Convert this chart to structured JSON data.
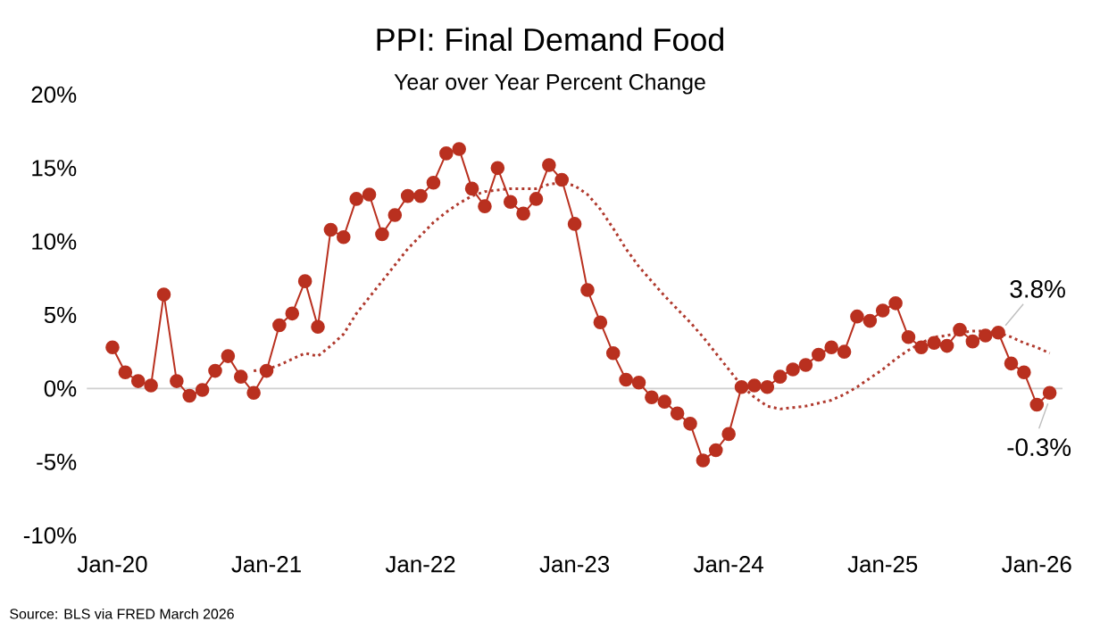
{
  "chart_data": {
    "type": "line",
    "title": "PPI: Final Demand Food",
    "subtitle": "Year over Year Percent Change",
    "x": [
      "2020-01",
      "2020-02",
      "2020-03",
      "2020-04",
      "2020-05",
      "2020-06",
      "2020-07",
      "2020-08",
      "2020-09",
      "2020-10",
      "2020-11",
      "2020-12",
      "2021-01",
      "2021-02",
      "2021-03",
      "2021-04",
      "2021-05",
      "2021-06",
      "2021-07",
      "2021-08",
      "2021-09",
      "2021-10",
      "2021-11",
      "2021-12",
      "2022-01",
      "2022-02",
      "2022-03",
      "2022-04",
      "2022-05",
      "2022-06",
      "2022-07",
      "2022-08",
      "2022-09",
      "2022-10",
      "2022-11",
      "2022-12",
      "2023-01",
      "2023-02",
      "2023-03",
      "2023-04",
      "2023-05",
      "2023-06",
      "2023-07",
      "2023-08",
      "2023-09",
      "2023-10",
      "2023-11",
      "2023-12",
      "2024-01",
      "2024-02",
      "2024-03",
      "2024-04",
      "2024-05",
      "2024-06",
      "2024-07",
      "2024-08",
      "2024-09",
      "2024-10",
      "2024-11",
      "2024-12",
      "2025-01",
      "2025-02",
      "2025-03",
      "2025-04",
      "2025-05",
      "2025-06",
      "2025-07",
      "2025-08",
      "2025-09",
      "2025-10",
      "2025-11",
      "2025-12",
      "2026-01",
      "2026-02"
    ],
    "series": [
      {
        "color": "#b9301f",
        "marker": "circle",
        "line_style": "solid",
        "values": [
          2.8,
          1.1,
          0.5,
          0.2,
          6.4,
          0.5,
          -0.5,
          -0.1,
          1.2,
          2.2,
          0.8,
          -0.3,
          1.2,
          4.3,
          5.1,
          7.3,
          4.2,
          10.8,
          10.3,
          12.9,
          13.2,
          10.5,
          11.8,
          13.1,
          13.1,
          14.0,
          16.0,
          16.3,
          13.6,
          12.4,
          15.0,
          12.7,
          11.9,
          12.9,
          15.2,
          14.2,
          11.2,
          6.7,
          4.5,
          2.4,
          0.6,
          0.4,
          -0.6,
          -0.9,
          -1.7,
          -2.4,
          -4.9,
          -4.2,
          -3.1,
          0.1,
          0.2,
          0.1,
          0.8,
          1.3,
          1.6,
          2.3,
          2.8,
          2.5,
          4.9,
          4.6,
          5.3,
          5.8,
          3.5,
          2.8,
          3.1,
          2.9,
          4.0,
          3.2,
          3.6,
          3.8,
          1.7,
          1.1,
          -1.1,
          -0.3
        ]
      },
      {
        "color": "#b03a2e",
        "marker": "none",
        "line_style": "dotted",
        "x": [
          "2020-12",
          "2021-01",
          "2021-02",
          "2021-03",
          "2021-04",
          "2021-05",
          "2021-06",
          "2021-07",
          "2021-08",
          "2021-09",
          "2021-10",
          "2021-11",
          "2021-12",
          "2022-01",
          "2022-02",
          "2022-03",
          "2022-04",
          "2022-05",
          "2022-06",
          "2022-07",
          "2022-08",
          "2022-09",
          "2022-10",
          "2022-11",
          "2022-12",
          "2023-01",
          "2023-02",
          "2023-03",
          "2023-04",
          "2023-05",
          "2023-06",
          "2023-07",
          "2023-08",
          "2023-09",
          "2023-10",
          "2023-11",
          "2023-12",
          "2024-01",
          "2024-02",
          "2024-03",
          "2024-04",
          "2024-05",
          "2024-06",
          "2024-07",
          "2024-08",
          "2024-09",
          "2024-10",
          "2024-11",
          "2024-12",
          "2025-01",
          "2025-02",
          "2025-03",
          "2025-04",
          "2025-05",
          "2025-06",
          "2025-07",
          "2025-08",
          "2025-09",
          "2025-10",
          "2025-11",
          "2025-12",
          "2026-01",
          "2026-02"
        ],
        "values": [
          1.2,
          1.3,
          1.6,
          2.0,
          2.4,
          2.2,
          2.9,
          3.7,
          5.1,
          6.2,
          7.3,
          8.4,
          9.5,
          10.4,
          11.3,
          12.0,
          12.6,
          13.1,
          13.4,
          13.5,
          13.6,
          13.6,
          13.6,
          13.9,
          14.0,
          13.8,
          13.2,
          12.2,
          10.9,
          9.5,
          8.3,
          7.3,
          6.3,
          5.4,
          4.5,
          3.5,
          2.4,
          1.3,
          0.2,
          -0.6,
          -1.2,
          -1.4,
          -1.3,
          -1.2,
          -1.0,
          -0.8,
          -0.4,
          0.1,
          0.7,
          1.3,
          2.0,
          2.6,
          3.1,
          3.5,
          3.6,
          3.8,
          3.9,
          3.9,
          3.8,
          3.5,
          3.1,
          2.8,
          2.4
        ]
      }
    ],
    "xlim": [
      "2019-11",
      "2026-03"
    ],
    "xticks": [
      {
        "value": "2020-01",
        "label": "Jan-20"
      },
      {
        "value": "2021-01",
        "label": "Jan-21"
      },
      {
        "value": "2022-01",
        "label": "Jan-22"
      },
      {
        "value": "2023-01",
        "label": "Jan-23"
      },
      {
        "value": "2024-01",
        "label": "Jan-24"
      },
      {
        "value": "2025-01",
        "label": "Jan-25"
      },
      {
        "value": "2026-01",
        "label": "Jan-26"
      }
    ],
    "ylim": [
      -10,
      20
    ],
    "yticks": [
      {
        "value": -10,
        "label": "-10%"
      },
      {
        "value": -5,
        "label": "-5%"
      },
      {
        "value": 0,
        "label": "0%"
      },
      {
        "value": 5,
        "label": "5%"
      },
      {
        "value": 10,
        "label": "10%"
      },
      {
        "value": 15,
        "label": "15%"
      },
      {
        "value": 20,
        "label": "20%"
      }
    ],
    "ref_lines": [
      {
        "axis": "y",
        "value": 0,
        "color": "#d0d0d0",
        "line_style": "solid"
      }
    ],
    "annotations": [
      {
        "text": "3.8%",
        "x": "2025-10",
        "y": 3.8
      },
      {
        "text": "-0.3%",
        "x": "2026-02",
        "y": -0.3
      },
      "Source: BLS via FRED March 2026"
    ],
    "grid": false
  }
}
